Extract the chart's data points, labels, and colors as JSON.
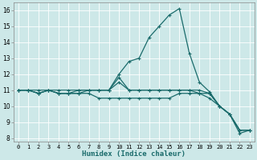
{
  "title": "",
  "xlabel": "Humidex (Indice chaleur)",
  "ylabel": "",
  "background_color": "#cde8e8",
  "grid_color": "#ffffff",
  "line_color": "#1a6b6b",
  "xlim": [
    -0.5,
    23.5
  ],
  "ylim": [
    7.8,
    16.5
  ],
  "xticks": [
    0,
    1,
    2,
    3,
    4,
    5,
    6,
    7,
    8,
    9,
    10,
    11,
    12,
    13,
    14,
    15,
    16,
    17,
    18,
    19,
    20,
    21,
    22,
    23
  ],
  "yticks": [
    8,
    9,
    10,
    11,
    12,
    13,
    14,
    15,
    16
  ],
  "series": [
    {
      "x": [
        0,
        1,
        2,
        3,
        4,
        5,
        6,
        7,
        8,
        9,
        10,
        11,
        12,
        13,
        14,
        15,
        16,
        17,
        18,
        19,
        20,
        21,
        22,
        23
      ],
      "y": [
        11,
        11,
        11,
        11,
        11,
        11,
        11,
        11,
        11,
        11,
        12,
        12.8,
        13,
        14.3,
        15,
        15.7,
        16.1,
        13.3,
        11.5,
        10.9,
        10,
        9.5,
        8.3,
        8.5
      ]
    },
    {
      "x": [
        0,
        1,
        2,
        3,
        4,
        5,
        6,
        7,
        8,
        9,
        10,
        11,
        12,
        13,
        14,
        15,
        16,
        17,
        18,
        19,
        20,
        21,
        22,
        23
      ],
      "y": [
        11,
        11,
        10.8,
        11,
        10.8,
        10.8,
        10.8,
        10.8,
        10.5,
        10.5,
        10.5,
        10.5,
        10.5,
        10.5,
        10.5,
        10.5,
        10.8,
        10.8,
        10.8,
        10.8,
        10,
        9.5,
        8.5,
        8.5
      ]
    },
    {
      "x": [
        0,
        1,
        2,
        3,
        4,
        5,
        6,
        7,
        8,
        9,
        10,
        11,
        12,
        13,
        14,
        15,
        16,
        17,
        18,
        19,
        20,
        21,
        22,
        23
      ],
      "y": [
        11,
        11,
        10.8,
        11,
        10.8,
        10.8,
        10.8,
        11,
        11,
        11,
        11.5,
        11,
        11,
        11,
        11,
        11,
        11,
        11,
        11,
        10.8,
        10,
        9.5,
        8.5,
        8.5
      ]
    },
    {
      "x": [
        0,
        1,
        2,
        3,
        4,
        5,
        6,
        7,
        8,
        9,
        10,
        11,
        12,
        13,
        14,
        15,
        16,
        17,
        18,
        19,
        20,
        21,
        22,
        23
      ],
      "y": [
        11,
        11,
        10.8,
        11,
        10.8,
        10.8,
        11,
        11,
        11,
        11,
        11.8,
        11,
        11,
        11,
        11,
        11,
        11,
        11,
        10.8,
        10.5,
        10,
        9.5,
        8.5,
        8.5
      ]
    }
  ]
}
